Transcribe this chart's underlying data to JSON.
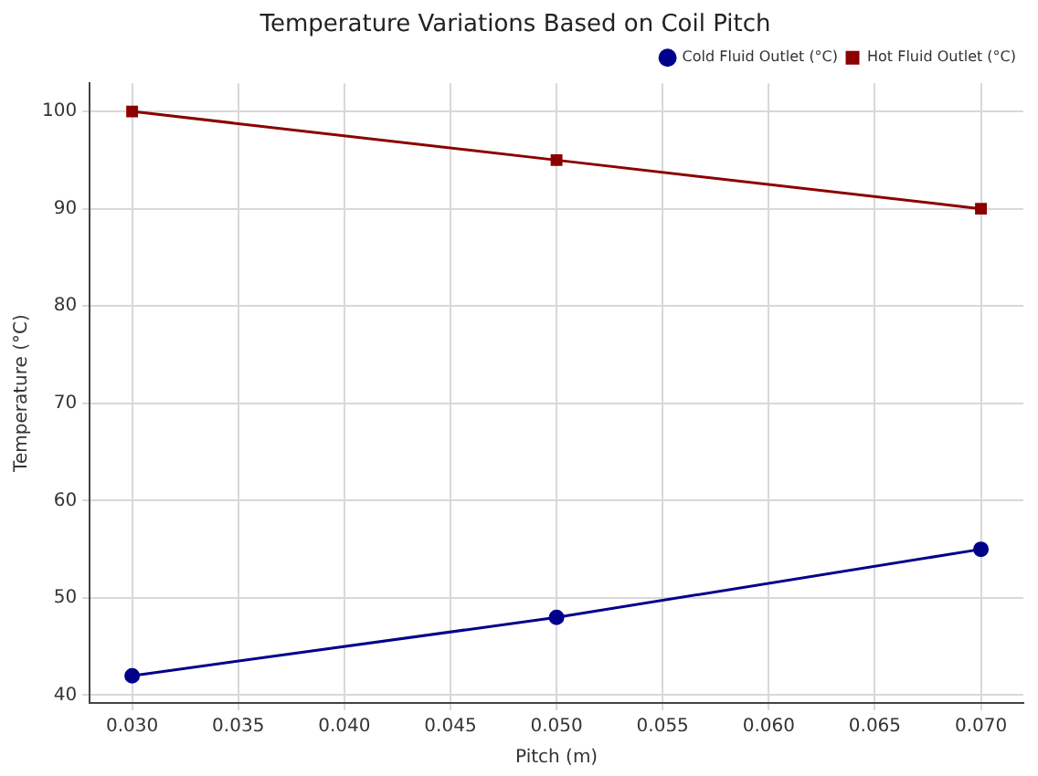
{
  "chart_data": {
    "type": "line",
    "title": "Temperature Variations Based on Coil Pitch",
    "xlabel": "Pitch (m)",
    "ylabel": "Temperature (°C)",
    "x": [
      0.03,
      0.05,
      0.07
    ],
    "series": [
      {
        "name": "Cold Fluid Outlet (°C)",
        "color": "#00008b",
        "values": [
          42,
          48,
          55
        ],
        "marker": "circle"
      },
      {
        "name": "Hot Fluid Outlet (°C)",
        "color": "#8b0000",
        "values": [
          100,
          95,
          90
        ],
        "marker": "square"
      }
    ],
    "xlim": [
      0.028,
      0.072
    ],
    "ylim": [
      39.2,
      102.9
    ],
    "xticks": [
      {
        "value": 0.03,
        "label": "0.030"
      },
      {
        "value": 0.035,
        "label": "0.035"
      },
      {
        "value": 0.04,
        "label": "0.040"
      },
      {
        "value": 0.045,
        "label": "0.045"
      },
      {
        "value": 0.05,
        "label": "0.050"
      },
      {
        "value": 0.055,
        "label": "0.055"
      },
      {
        "value": 0.06,
        "label": "0.060"
      },
      {
        "value": 0.065,
        "label": "0.065"
      },
      {
        "value": 0.07,
        "label": "0.070"
      }
    ],
    "yticks": [
      40,
      50,
      60,
      70,
      80,
      90,
      100
    ],
    "grid": true,
    "legend": "top right",
    "line_style": "solid"
  }
}
